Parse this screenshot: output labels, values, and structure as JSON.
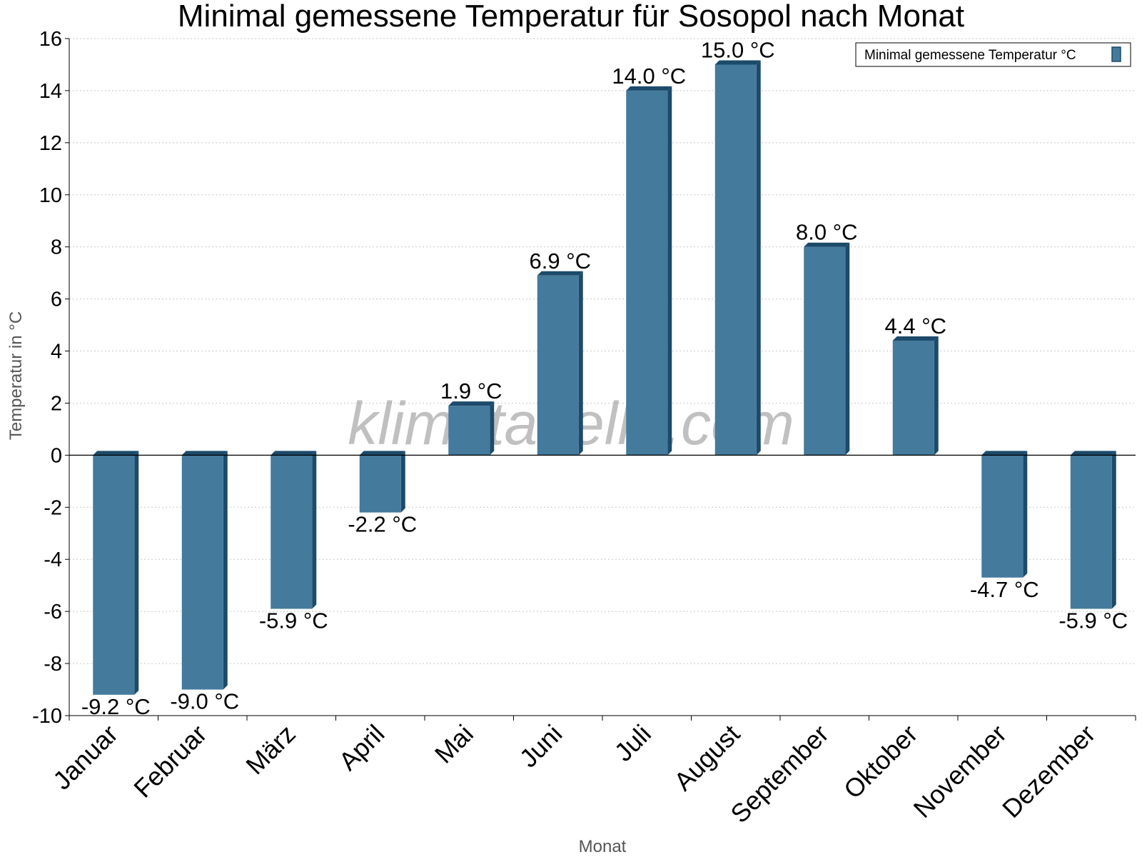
{
  "chart_data": {
    "type": "bar",
    "title": "Minimal gemessene Temperatur für Sosopol nach Monat",
    "xlabel": "Monat",
    "ylabel": "Temperatur in °C",
    "ylim": [
      -10,
      16
    ],
    "yticks": [
      "-10",
      "-8",
      "-6",
      "-4",
      "-2",
      "0",
      "2",
      "4",
      "6",
      "8",
      "10",
      "12",
      "14",
      "16"
    ],
    "grid": true,
    "legend_position": "top-right",
    "categories": [
      "Januar",
      "Februar",
      "März",
      "April",
      "Mai",
      "Juni",
      "Juli",
      "August",
      "September",
      "Oktober",
      "November",
      "Dezember"
    ],
    "series": [
      {
        "name": "Minimal gemessene Temperatur °C",
        "values": [
          -9.2,
          -9.0,
          -5.9,
          -2.2,
          1.9,
          6.9,
          14.0,
          15.0,
          8.0,
          4.4,
          -4.7,
          -5.9
        ],
        "labels": [
          "-9.2 °C",
          "-9.0 °C",
          "-5.9 °C",
          "-2.2 °C",
          "1.9 °C",
          "6.9 °C",
          "14.0 °C",
          "15.0 °C",
          "8.0 °C",
          "4.4 °C",
          "-4.7 °C",
          "-5.9 °C"
        ]
      }
    ],
    "colors": {
      "bar": "#447a9c",
      "bar_side": "#1c4a6a",
      "grid": "#c8c8c8",
      "axis": "#000000"
    },
    "watermark": "klimatabelle.com"
  }
}
